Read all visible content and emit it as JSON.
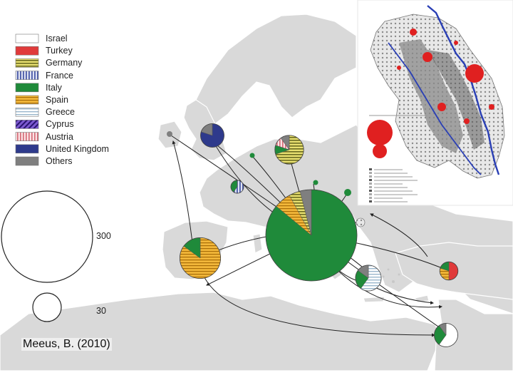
{
  "legend": {
    "items": [
      {
        "label": "Israel",
        "color": "#ffffff",
        "pattern": "plain"
      },
      {
        "label": "Turkey",
        "color": "#e03a3a",
        "pattern": "plain"
      },
      {
        "label": "Germany",
        "color": "#c9c43a",
        "pattern": "hstripes"
      },
      {
        "label": "France",
        "color": "#4a5aa8",
        "pattern": "vstripes"
      },
      {
        "label": "Italy",
        "color": "#1f8a3a",
        "pattern": "plain"
      },
      {
        "label": "Spain",
        "color": "#e8a21a",
        "pattern": "hstripes"
      },
      {
        "label": "Greece",
        "color": "#d8e6f0",
        "pattern": "hstripes"
      },
      {
        "label": "Cyprus",
        "color": "#4a2a9a",
        "pattern": "diag"
      },
      {
        "label": "Austria",
        "color": "#e8a0a8",
        "pattern": "vstripes"
      },
      {
        "label": "United Kingdom",
        "color": "#2e3a8c",
        "pattern": "plain"
      },
      {
        "label": "Others",
        "color": "#7f7f7f",
        "pattern": "plain"
      }
    ]
  },
  "scale": {
    "large_value": "300",
    "small_value": "30"
  },
  "credit": "Meeus, B. (2010)",
  "map": {
    "sea_color": "#ffffff",
    "land_color": "#d9d9d9",
    "border_color": "#ffffff",
    "arrow_color": "#222222"
  },
  "nodes": [
    {
      "name": "italy-node",
      "value": 300,
      "shares": [
        {
          "c": "Italy",
          "v": 86
        },
        {
          "c": "Spain",
          "v": 6
        },
        {
          "c": "Germany",
          "v": 4
        },
        {
          "c": "Others",
          "v": 4
        }
      ]
    },
    {
      "name": "spain-node",
      "value": 60,
      "shares": [
        {
          "c": "Spain",
          "v": 85
        },
        {
          "c": "Italy",
          "v": 15
        }
      ]
    },
    {
      "name": "uk-node",
      "value": 20,
      "shares": [
        {
          "c": "United Kingdom",
          "v": 80
        },
        {
          "c": "Others",
          "v": 20
        }
      ]
    },
    {
      "name": "germany-node",
      "value": 30,
      "shares": [
        {
          "c": "Germany",
          "v": 70
        },
        {
          "c": "Italy",
          "v": 10
        },
        {
          "c": "Austria",
          "v": 10
        },
        {
          "c": "Others",
          "v": 10
        }
      ]
    },
    {
      "name": "france-node",
      "value": 6,
      "shares": [
        {
          "c": "France",
          "v": 60
        },
        {
          "c": "Italy",
          "v": 40
        }
      ]
    },
    {
      "name": "greece-node",
      "value": 24,
      "shares": [
        {
          "c": "Greece",
          "v": 60
        },
        {
          "c": "Italy",
          "v": 25
        },
        {
          "c": "Others",
          "v": 15
        }
      ]
    },
    {
      "name": "turkey-node",
      "value": 12,
      "shares": [
        {
          "c": "Turkey",
          "v": 50
        },
        {
          "c": "Spain",
          "v": 30
        },
        {
          "c": "Italy",
          "v": 20
        }
      ]
    },
    {
      "name": "israel-node",
      "value": 20,
      "shares": [
        {
          "c": "Israel",
          "v": 60
        },
        {
          "c": "Italy",
          "v": 30
        },
        {
          "c": "Others",
          "v": 10
        }
      ]
    }
  ],
  "inset": {
    "legend_lines": 10
  }
}
